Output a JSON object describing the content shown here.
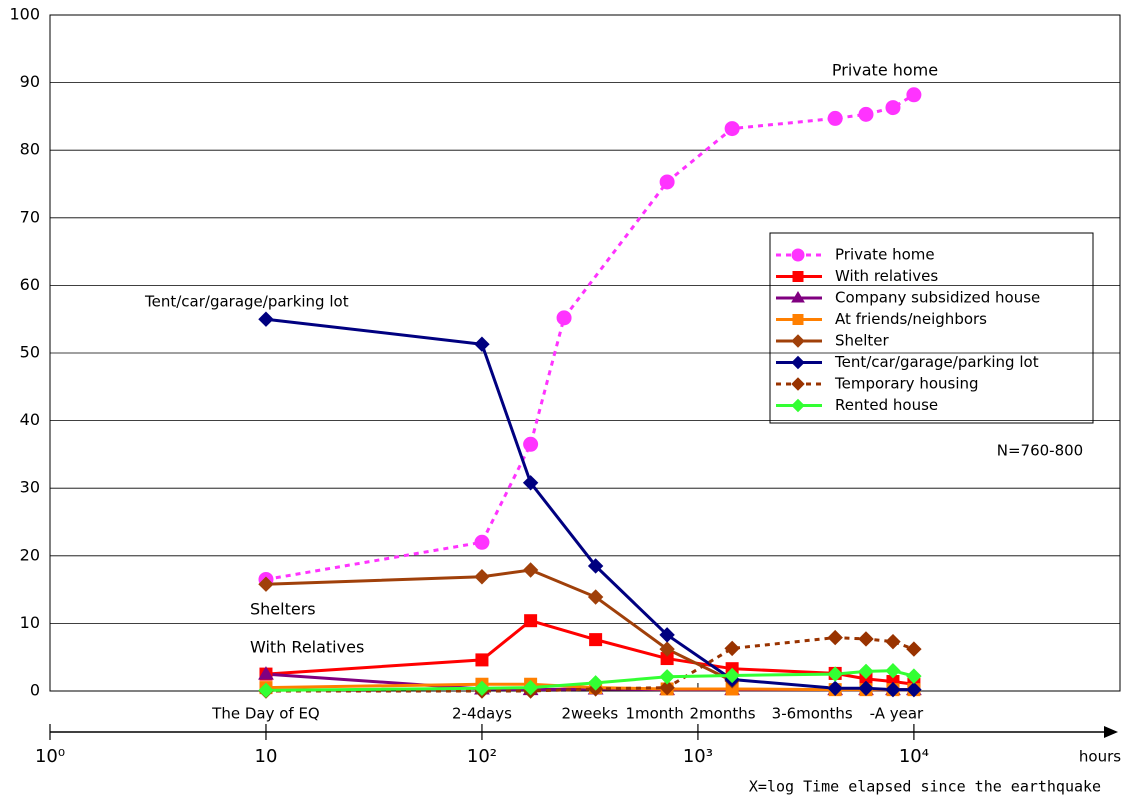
{
  "chart_data": {
    "type": "line",
    "xlabel": "X=log Time elapsed since the earthquake",
    "xunit": "hours",
    "log_x": true,
    "grid": true,
    "xlim": [
      1,
      90000
    ],
    "ylim": [
      0,
      100
    ],
    "yticks": [
      0,
      10,
      20,
      30,
      40,
      50,
      60,
      70,
      80,
      90,
      100
    ],
    "xticks": [
      {
        "value": 1,
        "label": "10⁰"
      },
      10,
      {
        "value": 100,
        "label": "10²"
      },
      {
        "value": 1000,
        "label": "10³"
      },
      {
        "value": 10000,
        "label": "10⁴"
      }
    ],
    "period_labels": [
      {
        "text": "The Day of EQ",
        "x": 10
      },
      {
        "text": "2-4days",
        "x": 100
      },
      {
        "text": "2weeks",
        "x": 316
      },
      {
        "text": "1month",
        "x": 630
      },
      {
        "text": "2months",
        "x": 1300
      },
      {
        "text": "3-6months",
        "x": 3380
      },
      {
        "text": "-A year",
        "x": 8300
      }
    ],
    "annotations": [
      "Private home",
      "Tent/car/garage/parking lot",
      "Shelters",
      "With Relatives",
      "N=760-800"
    ],
    "series": [
      {
        "name": "Private home",
        "color": "#ff33ff",
        "marker": "circle",
        "dash": "dotted",
        "x": [
          10,
          100,
          168,
          240,
          720,
          1440,
          4320,
          6000,
          8000,
          10000
        ],
        "values": [
          16.5,
          22,
          36.5,
          55.2,
          75.3,
          83.2,
          84.7,
          85.3,
          86.3,
          88.2
        ]
      },
      {
        "name": "With relatives",
        "color": "#ff0000",
        "marker": "square",
        "dash": "solid",
        "x": [
          10,
          100,
          168,
          336,
          720,
          1440,
          4320,
          6000,
          8000,
          10000
        ],
        "values": [
          2.5,
          4.6,
          10.4,
          7.6,
          4.8,
          3.3,
          2.6,
          1.8,
          1.4,
          1.0
        ]
      },
      {
        "name": "Company subsidized house",
        "color": "#800080",
        "marker": "triangle",
        "dash": "solid",
        "x": [
          10,
          100,
          168,
          336,
          720,
          1440,
          4320,
          6000,
          8000,
          10000
        ],
        "values": [
          2.5,
          0.3,
          0.2,
          0.3,
          0.2,
          0.2,
          0.2,
          0.2,
          0.2,
          0.2
        ]
      },
      {
        "name": "At friends/neighbors",
        "color": "#ff7f00",
        "marker": "square",
        "dash": "solid",
        "x": [
          10,
          100,
          168,
          336,
          720,
          1440,
          4320,
          6000,
          8000,
          10000
        ],
        "values": [
          0.5,
          1.0,
          1.0,
          0.5,
          0.3,
          0.3,
          0.2,
          0.2,
          0.2,
          0.2
        ]
      },
      {
        "name": "Shelter",
        "color": "#a0400a",
        "marker": "diamond",
        "dash": "solid",
        "x": [
          10,
          100,
          168,
          336,
          720,
          1440
        ],
        "values": [
          15.8,
          16.9,
          17.9,
          13.9,
          6.2,
          1.5
        ]
      },
      {
        "name": "Tent/car/garage/parking lot",
        "color": "#000080",
        "marker": "diamond",
        "dash": "solid",
        "x": [
          10,
          100,
          168,
          336,
          720,
          1440,
          4320,
          6000,
          8000,
          10000
        ],
        "values": [
          55,
          51.3,
          30.8,
          18.5,
          8.3,
          1.7,
          0.4,
          0.4,
          0.2,
          0.2
        ]
      },
      {
        "name": "Temporary housing",
        "color": "#993300",
        "marker": "diamond",
        "dash": "dotted",
        "x": [
          10,
          100,
          168,
          336,
          720,
          1440,
          4320,
          6000,
          8000,
          10000
        ],
        "values": [
          0,
          0,
          0,
          0.3,
          0.5,
          6.3,
          7.9,
          7.7,
          7.3,
          6.2
        ]
      },
      {
        "name": "Rented house",
        "color": "#33ff33",
        "marker": "diamond",
        "dash": "solid",
        "x": [
          10,
          100,
          168,
          336,
          720,
          1440,
          4320,
          6000,
          8000,
          10000
        ],
        "values": [
          0.1,
          0.4,
          0.5,
          1.2,
          2.1,
          2.3,
          2.5,
          2.9,
          3.0,
          2.2
        ]
      }
    ]
  }
}
